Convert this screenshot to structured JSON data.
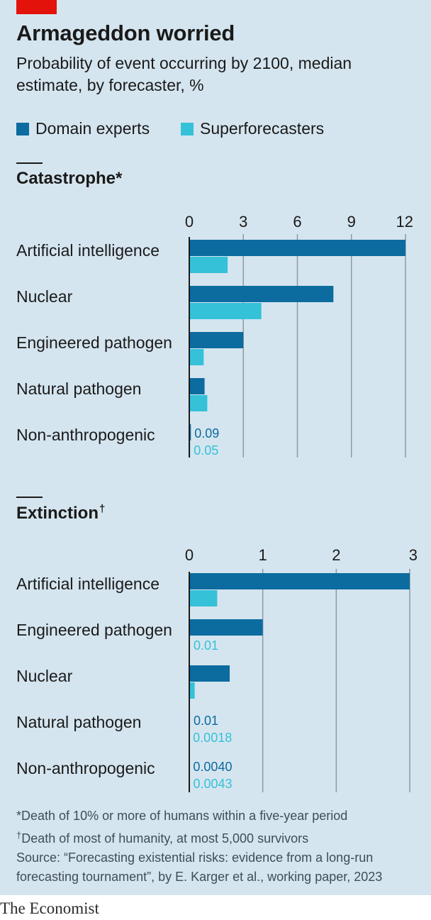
{
  "header": {
    "title": "Armageddon worried",
    "subtitle": "Probability of event occurring by 2100, median estimate, by forecaster, %"
  },
  "legend": [
    {
      "label": "Domain experts",
      "color": "#0c6b9f"
    },
    {
      "label": "Superforecasters",
      "color": "#35c1d8"
    }
  ],
  "chart_data": [
    {
      "type": "bar",
      "orientation": "horizontal",
      "title": "Catastrophe",
      "title_mark": "*",
      "unit": "%",
      "xlim": [
        0,
        12
      ],
      "ticks": [
        "0",
        "3",
        "6",
        "9",
        "12"
      ],
      "categories": [
        "Artificial intelligence",
        "Nuclear",
        "Engineered pathogen",
        "Natural pathogen",
        "Non-anthropogenic"
      ],
      "series": [
        {
          "name": "Domain experts",
          "values": [
            12,
            8,
            3,
            0.85,
            0.09
          ]
        },
        {
          "name": "Superforecasters",
          "values": [
            2.13,
            4,
            0.8,
            1,
            0.05
          ]
        }
      ],
      "data_labels": [
        {
          "category": "Non-anthropogenic",
          "series": "Domain experts",
          "text": "0.09"
        },
        {
          "category": "Non-anthropogenic",
          "series": "Superforecasters",
          "text": "0.05"
        }
      ]
    },
    {
      "type": "bar",
      "orientation": "horizontal",
      "title": "Extinction",
      "title_mark": "†",
      "unit": "%",
      "xlim": [
        0,
        3
      ],
      "ticks": [
        "0",
        "1",
        "2",
        "3"
      ],
      "categories": [
        "Artificial intelligence",
        "Engineered pathogen",
        "Nuclear",
        "Natural pathogen",
        "Non-anthropogenic"
      ],
      "series": [
        {
          "name": "Domain experts",
          "values": [
            3,
            1,
            0.55,
            0.01,
            0.004
          ]
        },
        {
          "name": "Superforecasters",
          "values": [
            0.38,
            0.01,
            0.074,
            0.0018,
            0.0043
          ]
        }
      ],
      "data_labels": [
        {
          "category": "Engineered pathogen",
          "series": "Superforecasters",
          "text": "0.01"
        },
        {
          "category": "Natural pathogen",
          "series": "Domain experts",
          "text": "0.01"
        },
        {
          "category": "Natural pathogen",
          "series": "Superforecasters",
          "text": "0.0018"
        },
        {
          "category": "Non-anthropogenic",
          "series": "Domain experts",
          "text": "0.0040"
        },
        {
          "category": "Non-anthropogenic",
          "series": "Superforecasters",
          "text": "0.0043"
        }
      ]
    }
  ],
  "footnotes": {
    "catastrophe": {
      "mark": "*",
      "text": "Death of 10% or more of humans within a five-year period"
    },
    "extinction": {
      "mark": "†",
      "text": "Death of most of humanity, at most 5,000 survivors"
    },
    "source_line1": "Source: “Forecasting existential risks: evidence from a long-run",
    "source_line2": "forecasting tournament”, by E. Karger et al., working paper, 2023"
  },
  "brand": "The Economist",
  "colors": {
    "background": "#d5e5ef",
    "accent_red": "#e3120b",
    "gridline": "#8e9aa2",
    "axis": "#1a1a1a",
    "text": "#1a1a1a"
  }
}
